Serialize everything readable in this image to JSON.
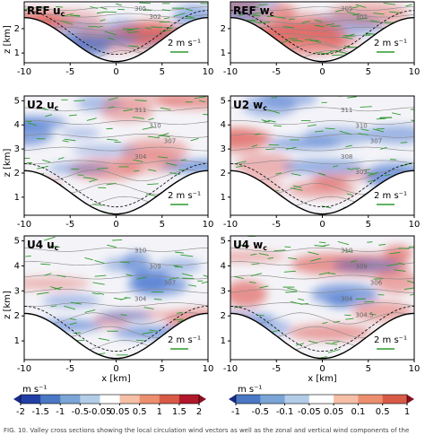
{
  "panels": [
    {
      "label": "REF",
      "variable": "u",
      "subscript": "c",
      "xlim": [
        -10,
        10
      ],
      "ylim": [
        0.6,
        3.1
      ],
      "xticks": [
        -10,
        -5,
        0,
        5,
        10
      ],
      "yticks": [
        1,
        2
      ],
      "ylabel": "z [km]",
      "ref_vector": "2 m s⁻¹",
      "contour_labels": [
        "305",
        "302"
      ]
    },
    {
      "label": "REF",
      "variable": "w",
      "subscript": "c",
      "xlim": [
        -10,
        10
      ],
      "ylim": [
        0.6,
        3.1
      ],
      "xticks": [
        -10,
        -5,
        0,
        5,
        10
      ],
      "yticks": [
        1,
        2
      ],
      "ref_vector": "2 m s⁻¹",
      "contour_labels": [
        "305",
        "302"
      ]
    },
    {
      "label": "U2",
      "variable": "u",
      "subscript": "c",
      "xlim": [
        -10,
        10
      ],
      "ylim": [
        0.25,
        5.2
      ],
      "xticks": [
        -10,
        -5,
        0,
        5,
        10
      ],
      "yticks": [
        1,
        2,
        3,
        4,
        5
      ],
      "ylabel": "z [km]",
      "ref_vector": "2 m s⁻¹",
      "contour_labels": [
        "311",
        "310",
        "307",
        "304"
      ]
    },
    {
      "label": "U2",
      "variable": "w",
      "subscript": "c",
      "xlim": [
        -10,
        10
      ],
      "ylim": [
        0.25,
        5.2
      ],
      "xticks": [
        -10,
        -5,
        0,
        5,
        10
      ],
      "yticks": [
        1,
        2,
        3,
        4,
        5
      ],
      "ref_vector": "2 m s⁻¹",
      "contour_labels": [
        "311",
        "310",
        "307",
        "308",
        "303"
      ]
    },
    {
      "label": "U4",
      "variable": "u",
      "subscript": "c",
      "xlim": [
        -10,
        10
      ],
      "ylim": [
        0.25,
        5.2
      ],
      "xticks": [
        -10,
        -5,
        0,
        5,
        10
      ],
      "yticks": [
        1,
        2,
        3,
        4,
        5
      ],
      "ylabel": "z [km]",
      "ref_vector": "2 m s⁻¹",
      "contour_labels": [
        "310",
        "309",
        "307",
        "304"
      ]
    },
    {
      "label": "U4",
      "variable": "w",
      "subscript": "c",
      "xlim": [
        -10,
        10
      ],
      "ylim": [
        0.25,
        5.2
      ],
      "xticks": [
        -10,
        -5,
        0,
        5,
        10
      ],
      "yticks": [
        1,
        2,
        3,
        4,
        5
      ],
      "ref_vector": "2 m s⁻¹",
      "contour_labels": [
        "310",
        "309",
        "306",
        "304",
        "304.5"
      ]
    }
  ],
  "xlabel": "x [km]",
  "colorbars": [
    {
      "unit": "m s⁻¹",
      "ticks": [
        -2,
        -1.5,
        -1,
        -0.5,
        -0.05,
        0.05,
        0.5,
        1,
        1.5,
        2
      ]
    },
    {
      "unit": "m s⁻¹",
      "ticks": [
        -1,
        -0.5,
        -0.1,
        -0.05,
        0.05,
        0.1,
        0.5,
        1
      ]
    }
  ],
  "caption": "FIG. 10. Valley cross sections showing the local circulation wind vectors as well as the zonal and vertical wind components of the"
}
